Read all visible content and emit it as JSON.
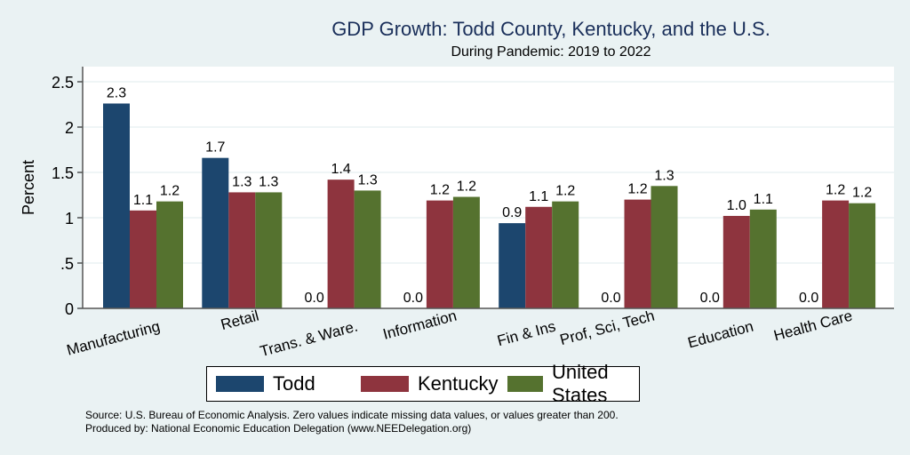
{
  "chart_data": {
    "type": "bar",
    "title": "GDP Growth: Todd County, Kentucky, and the U.S.",
    "subtitle": "During Pandemic: 2019 to 2022",
    "xlabel": "",
    "ylabel": "Percent",
    "ylim": [
      0,
      2.65
    ],
    "yticks": [
      0,
      0.5,
      1,
      1.5,
      2,
      2.5
    ],
    "ytick_labels": [
      "0",
      ".5",
      "1",
      "1.5",
      "2",
      "2.5"
    ],
    "grid": true,
    "legend_position": "bottom",
    "categories": [
      "Manufacturing",
      "Retail",
      "Trans. & Ware.",
      "Information",
      "Fin & Ins",
      "Prof, Sci, Tech",
      "Education",
      "Health Care"
    ],
    "series": [
      {
        "name": "Todd",
        "color": "#1c466e",
        "values": [
          2.26,
          1.66,
          0.0,
          0.0,
          0.94,
          0.0,
          0.0,
          0.0
        ],
        "labels": [
          "2.3",
          "1.7",
          "0.0",
          "0.0",
          "0.9",
          "0.0",
          "0.0",
          "0.0"
        ]
      },
      {
        "name": "Kentucky",
        "color": "#8e343e",
        "values": [
          1.08,
          1.28,
          1.42,
          1.19,
          1.12,
          1.2,
          1.02,
          1.19
        ],
        "labels": [
          "1.1",
          "1.3",
          "1.4",
          "1.2",
          "1.1",
          "1.2",
          "1.0",
          "1.2"
        ]
      },
      {
        "name": "United States",
        "color": "#55722f",
        "values": [
          1.18,
          1.28,
          1.3,
          1.23,
          1.18,
          1.35,
          1.09,
          1.16
        ],
        "labels": [
          "1.2",
          "1.3",
          "1.3",
          "1.2",
          "1.2",
          "1.3",
          "1.1",
          "1.2"
        ]
      }
    ]
  },
  "notes": {
    "source": "Source: U.S. Bureau of Economic Analysis. Zero values indicate missing data values, or values greater than 200.",
    "produced_by": "Produced by: National Economic Education Delegation (www.NEEDelegation.org)"
  }
}
